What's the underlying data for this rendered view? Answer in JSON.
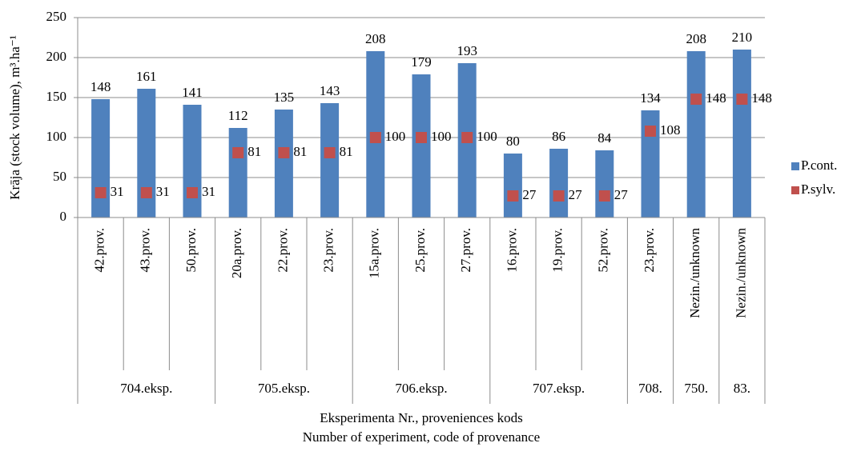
{
  "chart_data": {
    "type": "bar",
    "y_label": "Krāja (stock volume),  m³.ha⁻¹",
    "x_label": [
      "Eksperimenta  Nr., proveniences  kods",
      "Number of experiment,  code of provenance"
    ],
    "categories": [
      "42.prov.",
      "43.prov.",
      "50.prov.",
      "20a.prov.",
      "22.prov.",
      "23.prov.",
      "15a.prov.",
      "25.prov.",
      "27.prov.",
      "16.prov.",
      "19.prov.",
      "52.prov.",
      "23.prov.",
      "Nezin./unknown",
      "Nezin./unknown"
    ],
    "category_groups": [
      {
        "name": "704.eksp.",
        "count": 3
      },
      {
        "name": "705.eksp.",
        "count": 3
      },
      {
        "name": "706.eksp.",
        "count": 3
      },
      {
        "name": "707.eksp.",
        "count": 3
      },
      {
        "name": "708.",
        "count": 1
      },
      {
        "name": "750.",
        "count": 1
      },
      {
        "name": "83.",
        "count": 1
      }
    ],
    "series": [
      {
        "name": "P.cont.",
        "type": "bar",
        "color": "#4f81bd",
        "values": [
          148,
          161,
          141,
          112,
          135,
          143,
          208,
          179,
          193,
          80,
          86,
          84,
          134,
          208,
          210
        ]
      },
      {
        "name": "P.sylv.",
        "type": "marker",
        "color": "#c0504d",
        "values": [
          31,
          31,
          31,
          81,
          81,
          81,
          100,
          100,
          100,
          27,
          27,
          27,
          108,
          148,
          148
        ]
      }
    ],
    "ylim": [
      0,
      250
    ],
    "yticks": [
      0,
      50,
      100,
      150,
      200,
      250
    ],
    "grid": true,
    "legend": "right"
  }
}
